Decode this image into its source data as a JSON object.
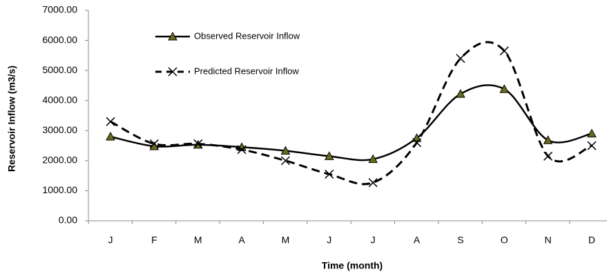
{
  "chart_data": {
    "type": "line",
    "x_label": "Time (month)",
    "y_label": "Reservoir Inflow (m3/s)",
    "categories": [
      "J",
      "F",
      "M",
      "A",
      "M",
      "J",
      "J",
      "A",
      "S",
      "O",
      "N",
      "D"
    ],
    "series": [
      {
        "name": "Observed Reservoir Inflow",
        "color": "#000000",
        "marker": "triangle",
        "marker_color": "#6b6b1e",
        "dash": false,
        "values": [
          2800,
          2480,
          2530,
          2450,
          2330,
          2150,
          2050,
          2750,
          4220,
          4380,
          2680,
          2900
        ]
      },
      {
        "name": "Predicted Reservoir Inflow",
        "color": "#000000",
        "marker": "x",
        "dash": true,
        "values": [
          3300,
          2560,
          2560,
          2370,
          2000,
          1550,
          1270,
          2600,
          5400,
          5650,
          2150,
          2500
        ]
      }
    ],
    "ylim": [
      0,
      7000
    ],
    "yticks": [
      {
        "value": 0,
        "label": "0.00"
      },
      {
        "value": 1000,
        "label": "1000.00"
      },
      {
        "value": 2000,
        "label": "2000.00"
      },
      {
        "value": 3000,
        "label": "3000.00"
      },
      {
        "value": 4000,
        "label": "4000.00"
      },
      {
        "value": 5000,
        "label": "5000.00"
      },
      {
        "value": 6000,
        "label": "6000.00"
      },
      {
        "value": 7000,
        "label": "7000.00"
      }
    ],
    "grid": false,
    "smooth": true
  }
}
